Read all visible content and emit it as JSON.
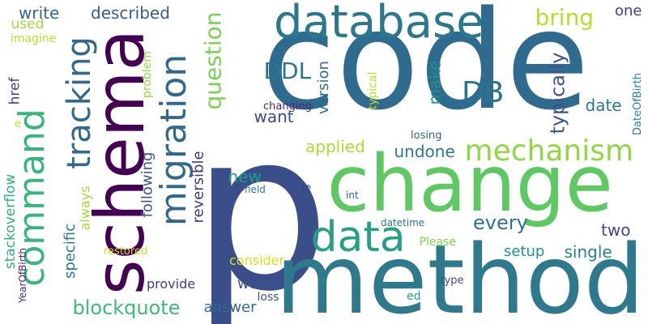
{
  "words": [
    {
      "text": "code",
      "color": "#2f6b8e"
    },
    {
      "text": "p",
      "color": "#3a4f8a"
    },
    {
      "text": "method",
      "color": "#2e7a8c"
    },
    {
      "text": "change",
      "color": "#5ec962"
    },
    {
      "text": "schema",
      "color": "#440154"
    },
    {
      "text": "database",
      "color": "#2a788e"
    },
    {
      "text": "migration",
      "color": "#31688e"
    },
    {
      "text": "command",
      "color": "#35b779"
    },
    {
      "text": "data",
      "color": "#26a085"
    },
    {
      "text": "mechanism",
      "color": "#90d743"
    },
    {
      "text": "tracking",
      "color": "#31688e"
    },
    {
      "text": "DB",
      "color": "#2c728e"
    },
    {
      "text": "bring",
      "color": "#b5de2b"
    },
    {
      "text": "question",
      "color": "#7ad151"
    },
    {
      "text": "DDL",
      "color": "#2a788e"
    },
    {
      "text": "typically",
      "color": "#3b528b"
    },
    {
      "text": "blockquote",
      "color": "#3cbb75"
    },
    {
      "text": "every",
      "color": "#2c728e"
    },
    {
      "text": "described",
      "color": "#38598c"
    },
    {
      "text": "write",
      "color": "#31688e"
    },
    {
      "text": "version",
      "color": "#2f6c8e"
    },
    {
      "text": "make",
      "color": "#21918c"
    },
    {
      "text": "date",
      "color": "#2a788e"
    },
    {
      "text": "applied",
      "color": "#addc30"
    },
    {
      "text": "undone",
      "color": "#2a788e"
    },
    {
      "text": "want",
      "color": "#3e4a89"
    },
    {
      "text": "new",
      "color": "#1f9e89"
    },
    {
      "text": "reversible",
      "color": "#46327e"
    },
    {
      "text": "following",
      "color": "#3b528b"
    },
    {
      "text": "specific",
      "color": "#2a788e"
    },
    {
      "text": "always",
      "color": "#a5db36"
    },
    {
      "text": "setup",
      "color": "#20928c"
    },
    {
      "text": "single",
      "color": "#26828e"
    },
    {
      "text": "two",
      "color": "#404688"
    },
    {
      "text": "one",
      "color": "#433e85"
    },
    {
      "text": "words",
      "color": "#3b528b"
    },
    {
      "text": "answer",
      "color": "#31688e"
    },
    {
      "text": "provide",
      "color": "#443a83"
    },
    {
      "text": "consider",
      "color": "#d8e219"
    },
    {
      "text": "stackoverflow",
      "color": "#2db27d"
    },
    {
      "text": "href",
      "color": "#3e4989"
    },
    {
      "text": "used",
      "color": "#a0da39"
    },
    {
      "text": "imagine",
      "color": "#bddf26"
    },
    {
      "text": "problem",
      "color": "#95d840"
    },
    {
      "text": "typical",
      "color": "#c2df23"
    },
    {
      "text": "changing",
      "color": "#482475"
    },
    {
      "text": "losing",
      "color": "#31688e"
    },
    {
      "text": "DateOfBirth",
      "color": "#25848e"
    },
    {
      "text": "field",
      "color": "#2a788e"
    },
    {
      "text": "int",
      "color": "#3a538b"
    },
    {
      "text": "datetime",
      "color": "#2a768e"
    },
    {
      "text": "Please",
      "color": "#7fd34e"
    },
    {
      "text": "restored",
      "color": "#c8e020"
    },
    {
      "text": "loss",
      "color": "#3b528b"
    },
    {
      "text": "ed",
      "color": "#1fa287"
    },
    {
      "text": "type",
      "color": "#3e4a89"
    },
    {
      "text": "YearOfBirth",
      "color": "#482878"
    },
    {
      "text": "e",
      "color": "#b8de29"
    },
    {
      "text": "g",
      "color": "#414487"
    }
  ]
}
